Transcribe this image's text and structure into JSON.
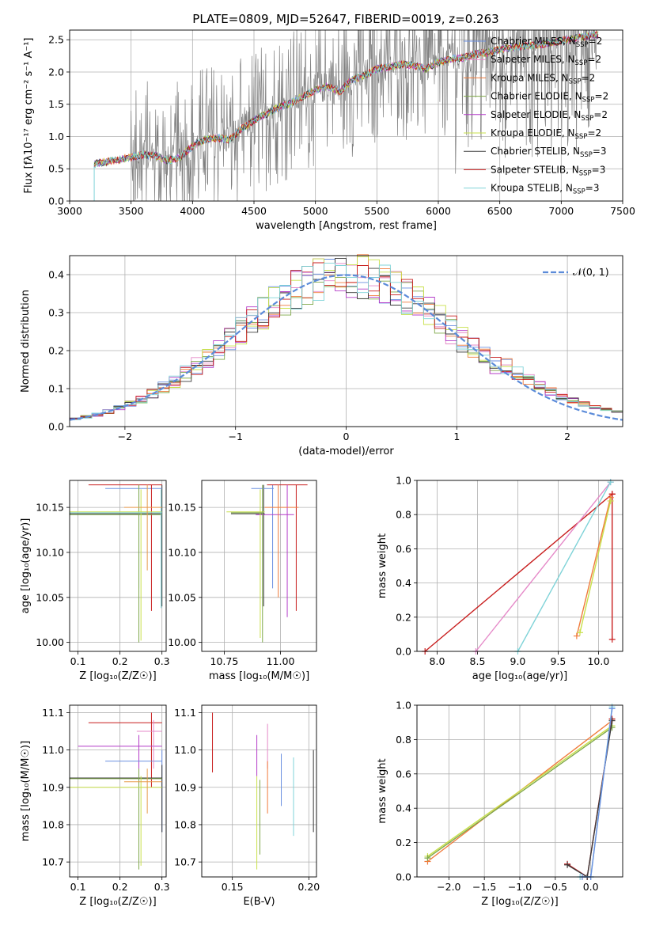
{
  "figure_title": "PLATE=0809, MJD=52647, FIBERID=0019, z=0.263",
  "colors": {
    "model": [
      "#6a8fe0",
      "#e89a4a",
      "#f07b3c",
      "#7fa84a",
      "#b43cc8",
      "#c8e04a",
      "#3a3a3a",
      "#c81e1e",
      "#7fd3d8"
    ],
    "pink": "#e589c8",
    "data": "#808080",
    "gauss": "#5b8bd9"
  },
  "chart_data": [
    {
      "id": "spectrum",
      "type": "line",
      "xlabel": "wavelength [Angstrom, rest frame]",
      "ylabel": "Flux [fλ10⁻¹⁷ erg cm⁻² s⁻¹ A⁻¹]",
      "xlim": [
        3000,
        7500
      ],
      "ylim": [
        0,
        2.65
      ],
      "xticks": [
        3000,
        3500,
        4000,
        4500,
        5000,
        5500,
        6000,
        6500,
        7000,
        7500
      ],
      "yticks": [
        0.0,
        0.5,
        1.0,
        1.5,
        2.0,
        2.5
      ],
      "legend_position": "top-right",
      "continuum": [
        [
          3200,
          0.58
        ],
        [
          3350,
          0.62
        ],
        [
          3500,
          0.68
        ],
        [
          3600,
          0.72
        ],
        [
          3700,
          0.7
        ],
        [
          3800,
          0.62
        ],
        [
          3900,
          0.68
        ],
        [
          4000,
          0.85
        ],
        [
          4100,
          0.95
        ],
        [
          4200,
          0.98
        ],
        [
          4300,
          0.95
        ],
        [
          4400,
          1.12
        ],
        [
          4500,
          1.25
        ],
        [
          4600,
          1.35
        ],
        [
          4700,
          1.45
        ],
        [
          4800,
          1.52
        ],
        [
          4900,
          1.62
        ],
        [
          5000,
          1.72
        ],
        [
          5100,
          1.78
        ],
        [
          5200,
          1.7
        ],
        [
          5300,
          1.88
        ],
        [
          5400,
          1.95
        ],
        [
          5500,
          2.05
        ],
        [
          5600,
          2.08
        ],
        [
          5700,
          2.12
        ],
        [
          5800,
          2.1
        ],
        [
          5900,
          2.05
        ],
        [
          6000,
          2.15
        ],
        [
          6100,
          2.2
        ],
        [
          6200,
          2.22
        ],
        [
          6300,
          2.28
        ],
        [
          6400,
          2.3
        ],
        [
          6500,
          2.35
        ],
        [
          6600,
          2.38
        ],
        [
          6700,
          2.4
        ],
        [
          6800,
          2.42
        ],
        [
          6900,
          2.45
        ],
        [
          7000,
          2.48
        ],
        [
          7100,
          2.52
        ],
        [
          7200,
          2.55
        ],
        [
          7300,
          2.58
        ]
      ],
      "series": [
        {
          "name": "Chabrier MILES, N",
          "nssp": "=2"
        },
        {
          "name": "Salpeter MILES, N",
          "nssp": "=2"
        },
        {
          "name": "Kroupa MILES, N",
          "nssp": "=2"
        },
        {
          "name": "Chabrier ELODIE, N",
          "nssp": "=2"
        },
        {
          "name": "Salpeter ELODIE, N",
          "nssp": "=2"
        },
        {
          "name": "Kroupa ELODIE, N",
          "nssp": "=2"
        },
        {
          "name": "Chabrier STELIB, N",
          "nssp": "=3"
        },
        {
          "name": "Salpeter STELIB, N",
          "nssp": "=3"
        },
        {
          "name": "Kroupa STELIB, N",
          "nssp": "=3"
        }
      ]
    },
    {
      "id": "residuals",
      "type": "line",
      "xlabel": "(data-model)/error",
      "ylabel": "Normed distribution",
      "xlim": [
        -2.5,
        2.5
      ],
      "ylim": [
        0,
        0.45
      ],
      "xticks": [
        -2,
        -1,
        0,
        1,
        2
      ],
      "yticks": [
        0.0,
        0.1,
        0.2,
        0.3,
        0.4
      ],
      "legend": "𝒩(0, 1)",
      "legend_position": "top-right",
      "bin_width": 0.1
    },
    {
      "id": "age_vs_Z",
      "type": "scatter",
      "xlabel": "Z [log₁₀(Z/Z☉)]",
      "ylabel": "age  [log₁₀(age/yr)]",
      "xlim": [
        0.08,
        0.31
      ],
      "ylim": [
        9.99,
        10.18
      ],
      "xticks": [
        0.1,
        0.2,
        0.3
      ],
      "yticks": [
        10.0,
        10.05,
        10.1,
        10.15
      ],
      "segments": [
        {
          "c": 6,
          "x": [
            0.08,
            0.3
          ],
          "y": 10.143,
          "vx": 0.3,
          "vy": [
            10.04,
            10.175
          ]
        },
        {
          "c": 0,
          "x": [
            0.165,
            0.3
          ],
          "y": 10.171,
          "vx": 0.245,
          "vy": [
            10.06,
            10.175
          ]
        },
        {
          "c": 7,
          "x": [
            0.125,
            0.3
          ],
          "y": 10.175,
          "vx": 0.275,
          "vy": [
            10.035,
            10.175
          ]
        },
        {
          "c": 3,
          "x": [
            0.08,
            0.3
          ],
          "y": 10.142,
          "vx": 0.245,
          "vy": [
            10.0,
            10.175
          ]
        },
        {
          "c": 5,
          "x": [
            0.08,
            0.3
          ],
          "y": 10.145,
          "vx": 0.25,
          "vy": [
            10.002,
            10.17
          ]
        },
        {
          "c": 8,
          "x": [
            0.08,
            0.3
          ],
          "y": 10.144,
          "vx": 0.298,
          "vy": [
            10.038,
            10.17
          ]
        },
        {
          "c": 1,
          "x": [
            0.21,
            0.3
          ],
          "y": 10.15,
          "vx": 0.265,
          "vy": [
            10.08,
            10.175
          ]
        }
      ]
    },
    {
      "id": "age_vs_mass",
      "type": "scatter",
      "xlabel": "mass [log₁₀(M/M☉)]",
      "ylabel": "",
      "xlim": [
        10.65,
        11.16
      ],
      "ylim": [
        9.99,
        10.18
      ],
      "xticks": [
        10.75,
        11.0
      ],
      "yticks": [
        10.0,
        10.05,
        10.1,
        10.15
      ],
      "segments": [
        {
          "c": 6,
          "x": [
            10.78,
            10.93
          ],
          "y": 10.143,
          "vx": 10.925,
          "vy": [
            10.04,
            10.175
          ]
        },
        {
          "c": 0,
          "x": [
            10.87,
            10.97
          ],
          "y": 10.171,
          "vx": 10.965,
          "vy": [
            10.06,
            10.175
          ]
        },
        {
          "c": 7,
          "x": [
            10.94,
            11.12
          ],
          "y": 10.175,
          "vx": 11.07,
          "vy": [
            10.035,
            10.175
          ]
        },
        {
          "c": 4,
          "x": [
            10.89,
            11.06
          ],
          "y": 10.142,
          "vx": 11.03,
          "vy": [
            10.028,
            10.175
          ]
        },
        {
          "c": 5,
          "x": [
            10.76,
            10.93
          ],
          "y": 10.145,
          "vx": 10.91,
          "vy": [
            10.005,
            10.17
          ]
        },
        {
          "c": 3,
          "x": [
            10.78,
            10.92
          ],
          "y": 10.144,
          "vx": 10.92,
          "vy": [
            10.0,
            10.175
          ]
        },
        {
          "c": 2,
          "x": [
            10.93,
            11.08
          ],
          "y": 10.15,
          "vx": 10.99,
          "vy": [
            10.05,
            10.175
          ]
        }
      ]
    },
    {
      "id": "mass_weight_vs_age",
      "type": "line",
      "xlabel": "age  [log₁₀(age/yr)]",
      "ylabel": "mass weight",
      "xlim": [
        7.75,
        10.3
      ],
      "ylim": [
        0,
        1.0
      ],
      "xticks": [
        8.0,
        8.5,
        9.0,
        9.5,
        10.0
      ],
      "yticks": [
        0.0,
        0.2,
        0.4,
        0.6,
        0.8,
        1.0
      ],
      "lines": [
        {
          "c": 7,
          "pts": [
            [
              7.85,
              0.0
            ],
            [
              10.17,
              0.92
            ]
          ]
        },
        {
          "c": 7,
          "pts": [
            [
              10.17,
              0.07
            ],
            [
              10.17,
              0.92
            ]
          ]
        },
        {
          "c": 9,
          "pts": [
            [
              8.48,
              0.0
            ],
            [
              10.15,
              0.99
            ]
          ]
        },
        {
          "c": 8,
          "pts": [
            [
              9.0,
              0.0
            ],
            [
              10.15,
              0.99
            ]
          ]
        },
        {
          "c": 2,
          "pts": [
            [
              9.73,
              0.09
            ],
            [
              10.15,
              0.9
            ]
          ]
        },
        {
          "c": 5,
          "pts": [
            [
              9.77,
              0.11
            ],
            [
              10.15,
              0.88
            ]
          ]
        }
      ]
    },
    {
      "id": "mass_vs_Z",
      "type": "scatter",
      "xlabel": "Z [log₁₀(Z/Z☉)]",
      "ylabel": "mass [log₁₀(M/M☉)]",
      "xlim": [
        0.08,
        0.31
      ],
      "ylim": [
        10.66,
        11.12
      ],
      "xticks": [
        0.1,
        0.2,
        0.3
      ],
      "yticks": [
        10.7,
        10.8,
        10.9,
        11.0,
        11.1
      ],
      "segments": [
        {
          "c": 7,
          "x": [
            0.125,
            0.3
          ],
          "y": 11.073,
          "vx": 0.275,
          "vy": [
            10.9,
            11.1
          ]
        },
        {
          "c": 4,
          "x": [
            0.1,
            0.3
          ],
          "y": 11.01,
          "vx": 0.245,
          "vy": [
            10.91,
            11.04
          ]
        },
        {
          "c": 0,
          "x": [
            0.165,
            0.3
          ],
          "y": 10.97,
          "vx": 0.3,
          "vy": [
            10.78,
            11.0
          ]
        },
        {
          "c": 6,
          "x": [
            0.08,
            0.3
          ],
          "y": 10.925,
          "vx": 0.3,
          "vy": [
            10.78,
            10.96
          ]
        },
        {
          "c": 3,
          "x": [
            0.08,
            0.3
          ],
          "y": 10.923,
          "vx": 0.245,
          "vy": [
            10.68,
            10.95
          ]
        },
        {
          "c": 5,
          "x": [
            0.08,
            0.3
          ],
          "y": 10.9,
          "vx": 0.25,
          "vy": [
            10.69,
            10.93
          ]
        },
        {
          "c": 1,
          "x": [
            0.21,
            0.3
          ],
          "y": 10.915,
          "vx": 0.265,
          "vy": [
            10.83,
            10.95
          ]
        },
        {
          "c": 9,
          "x": [
            0.24,
            0.3
          ],
          "y": 11.05,
          "vx": 0.28,
          "vy": [
            10.95,
            11.08
          ]
        }
      ]
    },
    {
      "id": "mass_vs_EBV",
      "type": "scatter",
      "xlabel": "E(B-V)",
      "ylabel": "",
      "xlim": [
        0.13,
        0.205
      ],
      "ylim": [
        10.66,
        11.12
      ],
      "xticks": [
        0.15,
        0.2
      ],
      "yticks": [
        10.7,
        10.8,
        10.9,
        11.0,
        11.1
      ],
      "vlines": [
        {
          "c": 7,
          "x": 0.137,
          "vy": [
            10.94,
            11.1
          ]
        },
        {
          "c": 4,
          "x": 0.166,
          "vy": [
            10.93,
            11.04
          ]
        },
        {
          "c": 5,
          "x": 0.166,
          "vy": [
            10.68,
            10.93
          ]
        },
        {
          "c": 3,
          "x": 0.168,
          "vy": [
            10.72,
            10.92
          ]
        },
        {
          "c": 9,
          "x": 0.173,
          "vy": [
            10.95,
            11.07
          ]
        },
        {
          "c": 2,
          "x": 0.173,
          "vy": [
            10.83,
            10.97
          ]
        },
        {
          "c": 0,
          "x": 0.182,
          "vy": [
            10.85,
            10.99
          ]
        },
        {
          "c": 8,
          "x": 0.19,
          "vy": [
            10.77,
            10.98
          ]
        },
        {
          "c": 6,
          "x": 0.203,
          "vy": [
            10.78,
            11.0
          ]
        }
      ]
    },
    {
      "id": "mass_weight_vs_Z",
      "type": "line",
      "xlabel": "Z [log₁₀(Z/Z☉)]",
      "ylabel": "mass weight",
      "xlim": [
        -2.45,
        0.45
      ],
      "ylim": [
        0,
        1.0
      ],
      "xticks": [
        -2.0,
        -1.5,
        -1.0,
        -0.5,
        0.0
      ],
      "yticks": [
        0.0,
        0.2,
        0.4,
        0.6,
        0.8,
        1.0
      ],
      "lines": [
        {
          "c": 2,
          "pts": [
            [
              -2.3,
              0.09
            ],
            [
              0.3,
              0.91
            ]
          ]
        },
        {
          "c": 5,
          "pts": [
            [
              -2.3,
              0.12
            ],
            [
              0.3,
              0.88
            ]
          ]
        },
        {
          "c": 3,
          "pts": [
            [
              -2.3,
              0.11
            ],
            [
              0.3,
              0.87
            ]
          ]
        },
        {
          "c": 7,
          "pts": [
            [
              -0.33,
              0.075
            ],
            [
              -0.05,
              0.0
            ],
            [
              0.3,
              0.92
            ]
          ]
        },
        {
          "c": 6,
          "pts": [
            [
              -0.33,
              0.07
            ],
            [
              -0.05,
              0.0
            ],
            [
              0.3,
              0.91
            ]
          ]
        },
        {
          "c": 8,
          "pts": [
            [
              -0.15,
              0.0
            ],
            [
              0.0,
              0.0
            ],
            [
              0.3,
              0.99
            ]
          ]
        },
        {
          "c": 0,
          "pts": [
            [
              -0.12,
              0.0
            ],
            [
              0.0,
              0.0
            ],
            [
              0.3,
              0.98
            ]
          ]
        }
      ]
    }
  ]
}
